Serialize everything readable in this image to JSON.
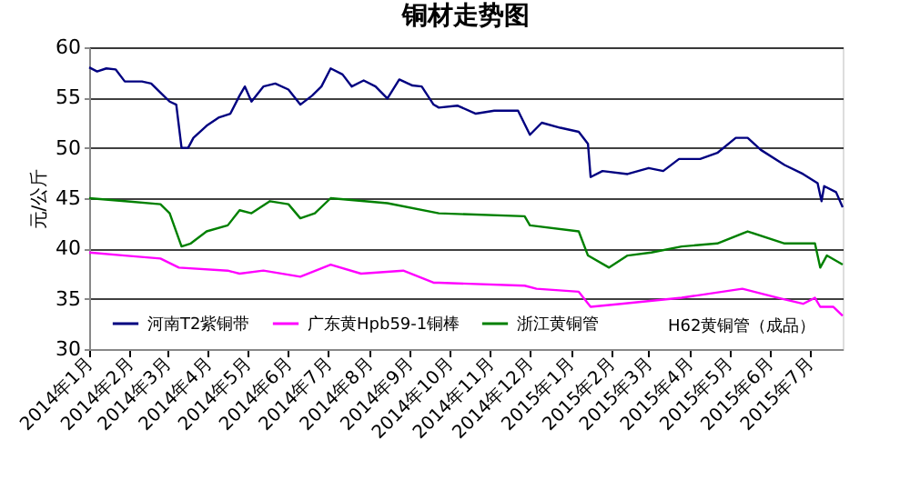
{
  "chart_data": {
    "type": "line",
    "title": "铜材走势图",
    "ylabel": "元/公斤",
    "xlim": [
      "2014-01-01",
      "2015-07-26"
    ],
    "xticks": [
      {
        "value": "2014-01-01",
        "label": "2014年1月"
      },
      {
        "value": "2014-02-01",
        "label": "2014年2月"
      },
      {
        "value": "2014-03-01",
        "label": "2014年3月"
      },
      {
        "value": "2014-04-01",
        "label": "2014年4月"
      },
      {
        "value": "2014-05-01",
        "label": "2014年5月"
      },
      {
        "value": "2014-06-01",
        "label": "2014年6月"
      },
      {
        "value": "2014-07-01",
        "label": "2014年7月"
      },
      {
        "value": "2014-08-01",
        "label": "2014年8月"
      },
      {
        "value": "2014-09-01",
        "label": "2014年9月"
      },
      {
        "value": "2014-10-01",
        "label": "2014年10月"
      },
      {
        "value": "2014-11-01",
        "label": "2014年11月"
      },
      {
        "value": "2014-12-01",
        "label": "2014年12月"
      },
      {
        "value": "2015-01-01",
        "label": "2015年1月"
      },
      {
        "value": "2015-02-01",
        "label": "2015年2月"
      },
      {
        "value": "2015-03-01",
        "label": "2015年3月"
      },
      {
        "value": "2015-04-01",
        "label": "2015年4月"
      },
      {
        "value": "2015-05-01",
        "label": "2015年5月"
      },
      {
        "value": "2015-06-01",
        "label": "2015年6月"
      },
      {
        "value": "2015-07-01",
        "label": "2015年7月"
      }
    ],
    "ylim": [
      30,
      60
    ],
    "yticks": [
      30,
      35,
      40,
      45,
      50,
      55,
      60
    ],
    "grid": "y",
    "legend": "bottom",
    "marker": "none",
    "line_style": "solid",
    "series": [
      {
        "name": "河南T2紫铜带",
        "color": "#000080",
        "x": [
          "2014-01-01",
          "2014-01-07",
          "2014-01-14",
          "2014-01-21",
          "2014-01-28",
          "2014-02-10",
          "2014-02-17",
          "2014-02-24",
          "2014-03-03",
          "2014-03-08",
          "2014-03-12",
          "2014-03-17",
          "2014-03-21",
          "2014-03-31",
          "2014-04-09",
          "2014-04-18",
          "2014-04-25",
          "2014-04-29",
          "2014-05-04",
          "2014-05-13",
          "2014-05-22",
          "2014-06-01",
          "2014-06-10",
          "2014-06-19",
          "2014-06-26",
          "2014-07-03",
          "2014-07-12",
          "2014-07-19",
          "2014-07-28",
          "2014-08-06",
          "2014-08-15",
          "2014-08-24",
          "2014-09-03",
          "2014-09-10",
          "2014-09-19",
          "2014-09-23",
          "2014-10-07",
          "2014-10-21",
          "2014-11-04",
          "2014-11-22",
          "2014-12-01",
          "2014-12-10",
          "2014-12-24",
          "2015-01-07",
          "2015-01-14",
          "2015-01-16",
          "2015-01-25",
          "2015-02-13",
          "2015-03-01",
          "2015-03-12",
          "2015-03-24",
          "2015-04-09",
          "2015-04-22",
          "2015-05-06",
          "2015-05-15",
          "2015-05-25",
          "2015-06-12",
          "2015-06-26",
          "2015-07-07",
          "2015-07-10",
          "2015-07-12",
          "2015-07-21",
          "2015-07-26"
        ],
        "values": [
          58.0,
          57.6,
          57.9,
          57.8,
          56.6,
          56.6,
          56.4,
          55.5,
          54.6,
          54.3,
          50.0,
          50.0,
          51.0,
          52.2,
          53.0,
          53.4,
          55.2,
          56.1,
          54.6,
          56.1,
          56.4,
          55.8,
          54.3,
          55.2,
          56.1,
          57.9,
          57.3,
          56.1,
          56.7,
          56.1,
          54.9,
          56.8,
          56.2,
          56.1,
          54.3,
          54.0,
          54.2,
          53.4,
          53.7,
          53.7,
          51.3,
          52.5,
          52.0,
          51.6,
          50.4,
          47.1,
          47.7,
          47.4,
          48.0,
          47.7,
          48.9,
          48.9,
          49.5,
          51.0,
          51.0,
          49.8,
          48.3,
          47.4,
          46.5,
          44.7,
          46.2,
          45.6,
          44.1
        ]
      },
      {
        "name": "广东黄Hpb59-1铜棒",
        "color": "#ff00ff",
        "x": [
          "2014-01-01",
          "2014-01-28",
          "2014-02-24",
          "2014-03-10",
          "2014-04-16",
          "2014-04-25",
          "2014-05-13",
          "2014-06-10",
          "2014-07-03",
          "2014-07-26",
          "2014-08-27",
          "2014-09-19",
          "2014-09-23",
          "2014-11-27",
          "2014-12-06",
          "2015-01-07",
          "2015-01-16",
          "2015-02-08",
          "2015-03-26",
          "2015-05-11",
          "2015-06-07",
          "2015-06-26",
          "2015-07-05",
          "2015-07-09",
          "2015-07-19",
          "2015-07-26"
        ],
        "values": [
          39.6,
          39.3,
          39.0,
          38.1,
          37.8,
          37.5,
          37.8,
          37.2,
          38.4,
          37.5,
          37.8,
          36.6,
          36.6,
          36.3,
          36.0,
          35.7,
          34.2,
          34.5,
          35.1,
          36.0,
          35.1,
          34.5,
          35.1,
          34.2,
          34.2,
          33.3
        ]
      },
      {
        "name": "浙江黄铜管",
        "color": "#008000",
        "x": [
          "2014-01-01",
          "2014-01-28",
          "2014-02-24",
          "2014-03-03",
          "2014-03-12",
          "2014-03-19",
          "2014-03-31",
          "2014-04-16",
          "2014-04-25",
          "2014-05-04",
          "2014-05-18",
          "2014-06-01",
          "2014-06-10",
          "2014-06-21",
          "2014-07-03",
          "2014-08-15",
          "2014-09-23",
          "2014-11-27",
          "2014-12-01",
          "2015-01-07",
          "2015-01-14",
          "2015-01-30",
          "2015-02-13",
          "2015-03-03",
          "2015-03-26",
          "2015-04-22",
          "2015-05-15",
          "2015-06-12",
          "2015-07-05",
          "2015-07-09",
          "2015-07-14",
          "2015-07-26"
        ],
        "values": [
          45.0,
          44.7,
          44.4,
          43.5,
          40.2,
          40.5,
          41.7,
          42.3,
          43.8,
          43.5,
          44.7,
          44.4,
          43.0,
          43.5,
          45.0,
          44.5,
          43.5,
          43.2,
          42.3,
          41.7,
          39.3,
          38.1,
          39.3,
          39.6,
          40.2,
          40.5,
          41.7,
          40.5,
          40.5,
          38.1,
          39.3,
          38.4
        ]
      }
    ],
    "annotations": [
      "H62黄铜管（成品）"
    ]
  }
}
